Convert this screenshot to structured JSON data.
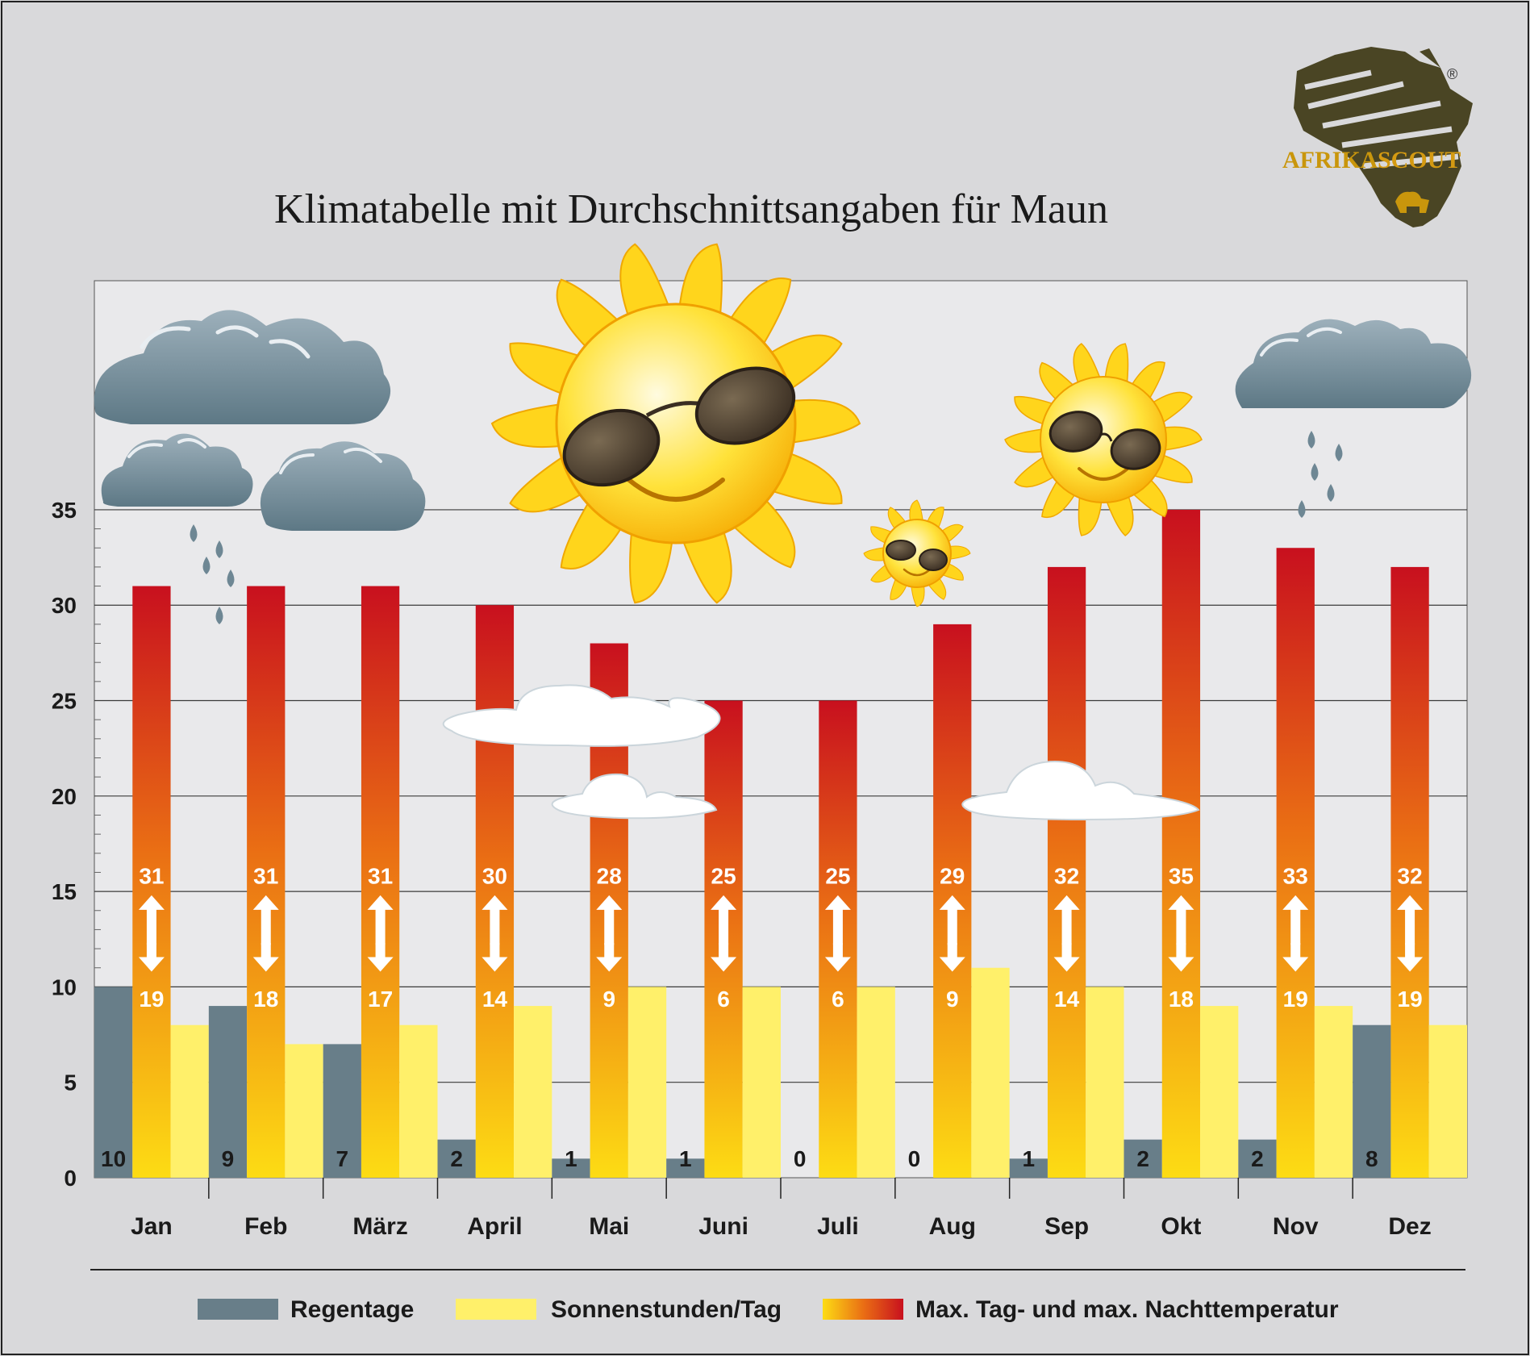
{
  "title": "Klimatabelle mit Durchschnittsangaben für Maun",
  "logo": {
    "text_a": "AFRIKA",
    "text_b": "SCOUT",
    "registered": "®"
  },
  "colors": {
    "background": "#d9d9db",
    "plot_bg": "#e9e9eb",
    "rain": "#687e89",
    "sun": "#fff06a",
    "temp_top": "#c8101e",
    "temp_mid": "#ea6f14",
    "temp_bottom": "#fddc14",
    "logo_olive": "#4a4524",
    "logo_gold": "#c9960c"
  },
  "chart_data": {
    "type": "bar",
    "title": "Klimatabelle mit Durchschnittsangaben für Maun",
    "categories": [
      "Jan",
      "Feb",
      "März",
      "April",
      "Mai",
      "Juni",
      "Juli",
      "Aug",
      "Sep",
      "Okt",
      "Nov",
      "Dez"
    ],
    "ylim": [
      0,
      47
    ],
    "yticks": [
      0,
      5,
      10,
      15,
      20,
      25,
      30,
      35
    ],
    "grid": true,
    "legend_position": "bottom",
    "series": [
      {
        "name": "Regentage",
        "key": "rain",
        "values": [
          10,
          9,
          7,
          2,
          1,
          1,
          0,
          0,
          1,
          2,
          2,
          8
        ]
      },
      {
        "name": "Max. Tag- und max. Nachttemperatur",
        "key": "temp",
        "values": [
          31,
          31,
          31,
          30,
          28,
          25,
          25,
          29,
          32,
          35,
          33,
          32
        ]
      },
      {
        "name": "Sonnenstunden/Tag",
        "key": "sun",
        "values": [
          8,
          7,
          8,
          9,
          10,
          10,
          10,
          11,
          10,
          9,
          9,
          8
        ]
      }
    ],
    "night_temperature": [
      19,
      18,
      17,
      14,
      9,
      6,
      6,
      9,
      14,
      18,
      19,
      19
    ],
    "legend": [
      {
        "label": "Regentage",
        "key": "rain"
      },
      {
        "label": "Sonnenstunden/Tag",
        "key": "sun"
      },
      {
        "label": "Max. Tag- und max. Nachttemperatur",
        "key": "temp"
      }
    ]
  }
}
